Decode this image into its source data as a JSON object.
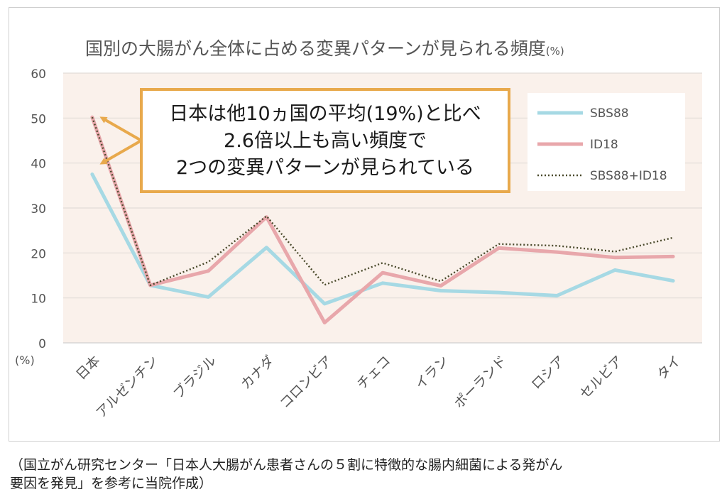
{
  "chart_data": {
    "type": "line",
    "title": "国別の大腸がん全体に占める変異パターンが見られる頻度",
    "title_unit": "(%)",
    "ylabel": "(%)",
    "ylim": [
      0,
      60
    ],
    "yticks": [
      0,
      10,
      20,
      30,
      40,
      50,
      60
    ],
    "grid": true,
    "legend": "top-right",
    "categories": [
      "日本",
      "アルゼンチン",
      "ブラジル",
      "カナダ",
      "コロンビア",
      "チェコ",
      "イラン",
      "ポーランド",
      "ロシア",
      "セルビア",
      "タイ"
    ],
    "series": [
      {
        "name": "SBS88",
        "color": "#a6d9e4",
        "style": "solid",
        "values": [
          37.5,
          12.8,
          10.2,
          21.2,
          8.7,
          13.3,
          11.6,
          11.2,
          10.5,
          16.2,
          13.8
        ]
      },
      {
        "name": "ID18",
        "color": "#e8a7ab",
        "style": "solid",
        "values": [
          50.2,
          12.8,
          16.0,
          28.0,
          4.5,
          15.6,
          12.7,
          21.1,
          20.2,
          19.0,
          19.2
        ]
      },
      {
        "name": "SBS88+ID18",
        "color": "#4a4a2c",
        "style": "dotted",
        "values": [
          50.2,
          12.8,
          18.0,
          28.2,
          12.9,
          17.8,
          13.7,
          22.0,
          21.6,
          20.3,
          23.4
        ]
      }
    ],
    "annotation": {
      "lines": [
        "日本は他10ヵ国の平均(19%)と比べ",
        "2.6倍以上も高い頻度で",
        "2つの変異パターンが見られている"
      ],
      "box_color": "#e8a94c",
      "arrow_targets": [
        50,
        40
      ]
    },
    "plot_background": "#faf1eb"
  },
  "source_note": "（国立がん研究センター「日本人大腸がん患者さんの５割に特徴的な腸内細菌による発がん\n要因を発見」を参考に当院作成）"
}
